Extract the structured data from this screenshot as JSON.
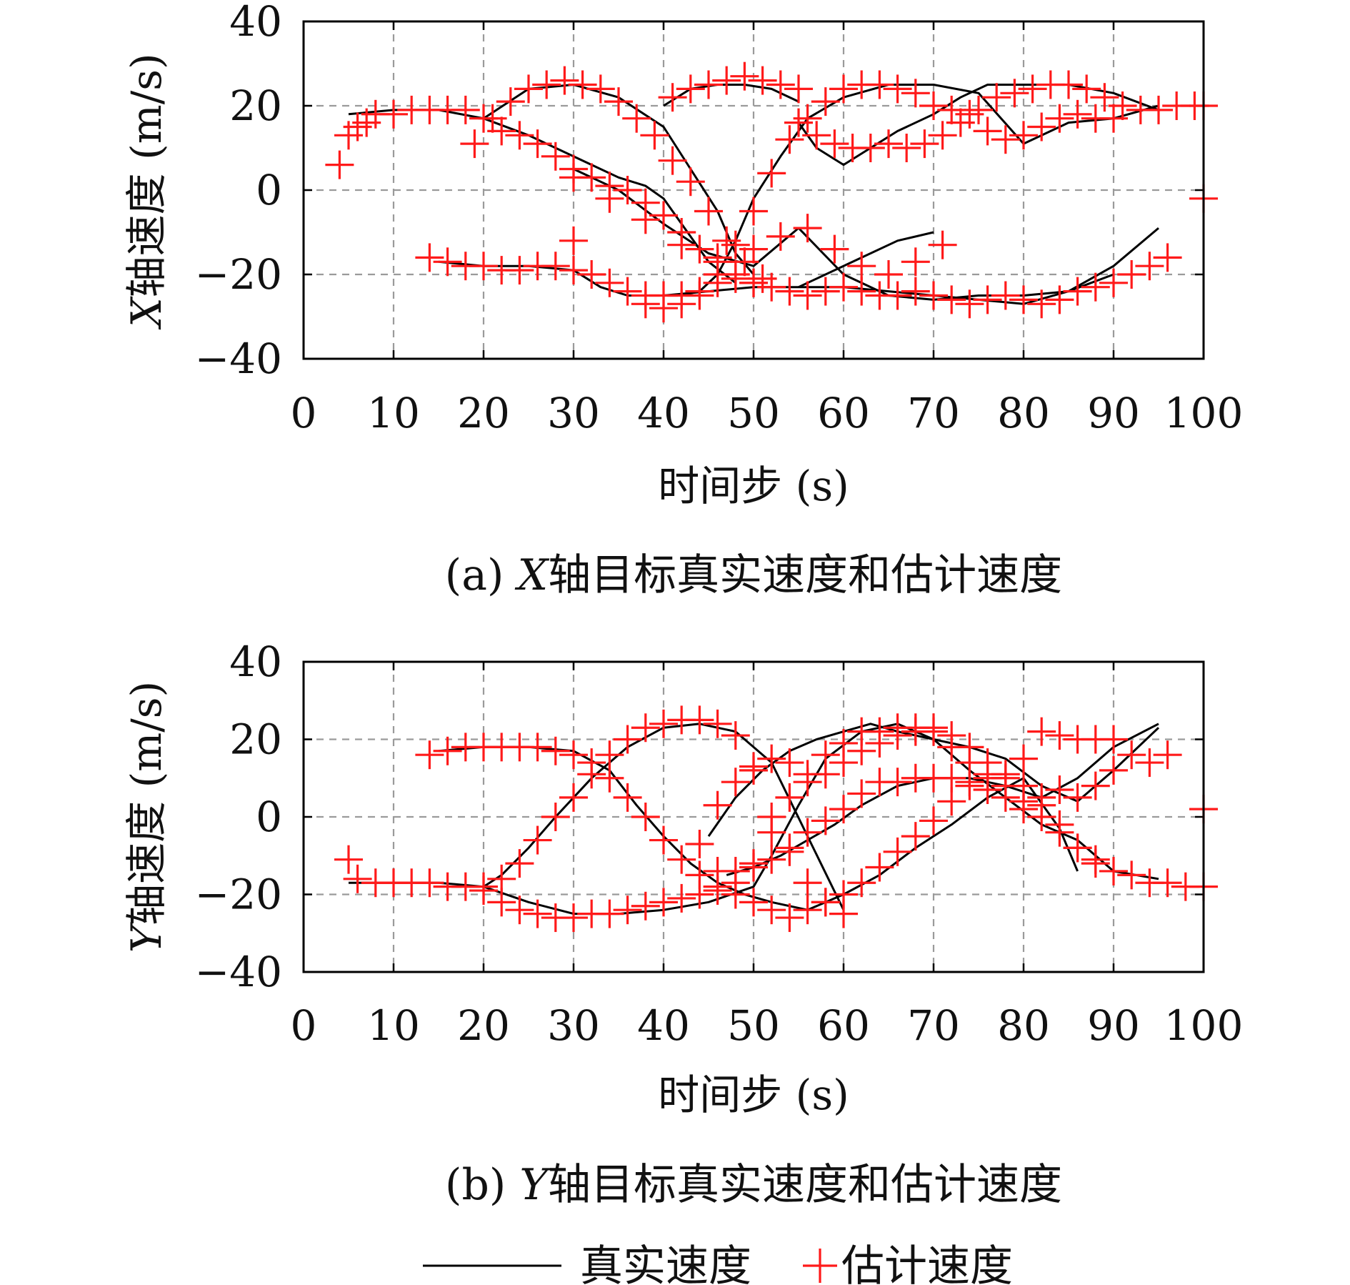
{
  "colors": {
    "true": "#000000",
    "estimate": "#ff1a1a",
    "grid": "#9a9a9a"
  },
  "legend": {
    "true_label": "真实速度",
    "estimate_label": "估计速度",
    "placement": "bottom-center"
  },
  "chart_data": [
    {
      "type": "line",
      "caption_prefix": "(a) ",
      "caption_axis": "X",
      "caption_rest": "轴目标真实速度和估计速度",
      "xlabel": "时间步 (s)",
      "ylabel_axis": "X",
      "ylabel_rest": "轴速度 (m/s)",
      "xlim": [
        0,
        100
      ],
      "ylim": [
        -40,
        40
      ],
      "grid": true,
      "xticks": [
        "0",
        "10",
        "20",
        "30",
        "40",
        "50",
        "60",
        "70",
        "80",
        "90",
        "100"
      ],
      "yticks": [
        "−40",
        "−20",
        "0",
        "20",
        "40"
      ],
      "true_series": [
        {
          "x": [
            5,
            10,
            15,
            20,
            25,
            28,
            32,
            35,
            38,
            40,
            42,
            45,
            48
          ],
          "y": [
            18,
            19,
            19,
            17,
            13,
            10,
            6,
            3,
            1,
            -2,
            -8,
            -17,
            -22
          ]
        },
        {
          "x": [
            15,
            20,
            25,
            30,
            33,
            36,
            40,
            45,
            50,
            55,
            60,
            65,
            70,
            75,
            80,
            85,
            90,
            95
          ],
          "y": [
            -17,
            -18,
            -18,
            -19,
            -23,
            -25,
            -25,
            -24,
            -23,
            -23,
            -23,
            -24,
            -25,
            -26,
            -27,
            -24,
            -18,
            -9
          ]
        },
        {
          "x": [
            20,
            25,
            30,
            35,
            40,
            43,
            46,
            48,
            50
          ],
          "y": [
            17,
            24,
            25,
            22,
            15,
            5,
            -5,
            -15,
            -20
          ]
        },
        {
          "x": [
            40,
            43,
            46,
            49,
            52,
            55
          ],
          "y": [
            20,
            24,
            25,
            25,
            24,
            21
          ]
        },
        {
          "x": [
            55,
            57,
            60,
            63,
            66,
            70,
            73,
            76,
            80,
            85,
            90,
            95
          ],
          "y": [
            16,
            10,
            6,
            10,
            14,
            18,
            22,
            25,
            25,
            25,
            23,
            19
          ]
        },
        {
          "x": [
            40,
            42,
            44,
            46,
            48,
            50,
            53,
            56,
            60,
            65,
            70,
            75,
            80,
            85,
            90,
            95
          ],
          "y": [
            -25,
            -25,
            -24,
            -20,
            -12,
            -2,
            8,
            17,
            22,
            25,
            25,
            23,
            11,
            16,
            17,
            20
          ]
        },
        {
          "x": [
            30,
            35,
            40,
            45,
            50,
            55,
            60,
            65,
            70,
            75,
            80,
            85,
            90
          ],
          "y": [
            5,
            0,
            -8,
            -15,
            -18,
            -9,
            -20,
            -25,
            -26,
            -25,
            -25,
            -24,
            -20
          ]
        },
        {
          "x": [
            55,
            58,
            62,
            66,
            70
          ],
          "y": [
            -23,
            -20,
            -16,
            -12,
            -10
          ]
        }
      ],
      "estimate_series": [
        {
          "x": [
            4,
            5,
            6,
            7,
            8,
            10,
            12,
            14,
            16,
            18,
            20,
            22,
            24,
            26,
            28,
            30,
            32,
            34,
            36,
            38,
            40,
            42,
            44,
            46,
            48,
            50
          ],
          "y": [
            6,
            13,
            15,
            16,
            18,
            18,
            19,
            19,
            19,
            19,
            17,
            14,
            13,
            11,
            8,
            5,
            3,
            1,
            0,
            -3,
            -6,
            -10,
            -14,
            -17,
            -20,
            -22
          ]
        },
        {
          "x": [
            14,
            16,
            18,
            20,
            22,
            24,
            26,
            28,
            30,
            32,
            34,
            36,
            38,
            40,
            42,
            44,
            46,
            48,
            50,
            52,
            54,
            56,
            58,
            60,
            62,
            64,
            66,
            68,
            70,
            72,
            74,
            76,
            78,
            80,
            82,
            84,
            86,
            88,
            90,
            92,
            94,
            96
          ],
          "y": [
            -16,
            -17,
            -18,
            -18,
            -19,
            -19,
            -18,
            -18,
            -19,
            -20,
            -22,
            -24,
            -25,
            -25,
            -25,
            -24,
            -22,
            -21,
            -22,
            -23,
            -24,
            -25,
            -24,
            -23,
            -24,
            -25,
            -25,
            -24,
            -25,
            -26,
            -27,
            -26,
            -25,
            -26,
            -27,
            -26,
            -24,
            -23,
            -22,
            -20,
            -18,
            -16
          ]
        },
        {
          "x": [
            19,
            21,
            23,
            25,
            27,
            29,
            31,
            33,
            35,
            37,
            39,
            41,
            43,
            45,
            47,
            49,
            51
          ],
          "y": [
            11,
            17,
            21,
            24,
            25,
            26,
            25,
            24,
            21,
            17,
            13,
            7,
            2,
            -5,
            -12,
            -17,
            -21
          ]
        },
        {
          "x": [
            41,
            43,
            45,
            47,
            49,
            51,
            53,
            55
          ],
          "y": [
            22,
            24,
            25,
            26,
            27,
            26,
            25,
            24
          ]
        },
        {
          "x": [
            55,
            57,
            59,
            61,
            63,
            65,
            67,
            69,
            71,
            73,
            75,
            77,
            79,
            81,
            83,
            85,
            87,
            89,
            91,
            93,
            95,
            97,
            99
          ],
          "y": [
            16,
            13,
            11,
            10,
            10,
            11,
            10,
            11,
            13,
            16,
            19,
            22,
            23,
            24,
            25,
            25,
            24,
            22,
            20,
            19,
            19,
            20,
            20
          ]
        },
        {
          "x": [
            38,
            40,
            42,
            44,
            46,
            48,
            50,
            52,
            54,
            56,
            58,
            60,
            62,
            64,
            66,
            68,
            70,
            72,
            74,
            76,
            78,
            80,
            82,
            84,
            86,
            88,
            90
          ],
          "y": [
            -27,
            -28,
            -27,
            -25,
            -20,
            -13,
            -5,
            4,
            12,
            17,
            21,
            24,
            25,
            25,
            24,
            23,
            20,
            19,
            18,
            14,
            12,
            13,
            15,
            17,
            18,
            17,
            17
          ]
        },
        {
          "x": [
            30,
            34,
            38,
            42,
            46,
            50,
            53,
            56,
            59,
            62,
            65,
            68,
            71
          ],
          "y": [
            3,
            -2,
            -7,
            -13,
            -16,
            -14,
            -11,
            -9,
            -14,
            -18,
            -20,
            -17,
            -13
          ]
        },
        {
          "x": [
            30,
            100,
            100
          ],
          "y": [
            -12,
            -2,
            20
          ]
        }
      ]
    },
    {
      "type": "line",
      "caption_prefix": "(b) ",
      "caption_axis": "Y",
      "caption_rest": "轴目标真实速度和估计速度",
      "xlabel": "时间步 (s)",
      "ylabel_axis": "Y",
      "ylabel_rest": "轴速度 (m/s)",
      "xlim": [
        0,
        100
      ],
      "ylim": [
        -40,
        40
      ],
      "grid": true,
      "xticks": [
        "0",
        "10",
        "20",
        "30",
        "40",
        "50",
        "60",
        "70",
        "80",
        "90",
        "100"
      ],
      "yticks": [
        "−40",
        "−20",
        "0",
        "20",
        "40"
      ],
      "true_series": [
        {
          "x": [
            5,
            10,
            15,
            20,
            22,
            25,
            28,
            32,
            36,
            40,
            44,
            48,
            52,
            56,
            60
          ],
          "y": [
            -17,
            -17,
            -17,
            -18,
            -15,
            -8,
            0,
            10,
            18,
            23,
            24,
            22,
            14,
            -5,
            -24
          ]
        },
        {
          "x": [
            15,
            20,
            25,
            30,
            34,
            37,
            40,
            43,
            46,
            49,
            52,
            56,
            60,
            64,
            68,
            72,
            76,
            80,
            84,
            86
          ],
          "y": [
            17,
            18,
            18,
            17,
            12,
            3,
            -5,
            -12,
            -17,
            -20,
            -22,
            -24,
            -20,
            -15,
            -8,
            -2,
            5,
            10,
            -3,
            -14
          ]
        },
        {
          "x": [
            20,
            25,
            30,
            35,
            40,
            45,
            50,
            52,
            55,
            58,
            62,
            66,
            70,
            74,
            78,
            82,
            86,
            90,
            95
          ],
          "y": [
            -18,
            -22,
            -25,
            -25,
            -24,
            -22,
            -18,
            -10,
            3,
            15,
            22,
            24,
            20,
            12,
            5,
            -2,
            -6,
            -14,
            -16
          ]
        },
        {
          "x": [
            45,
            48,
            51,
            54,
            57,
            60,
            63,
            66,
            70,
            74,
            78,
            82,
            86,
            90,
            95
          ],
          "y": [
            -5,
            5,
            12,
            17,
            20,
            22,
            24,
            22,
            20,
            18,
            15,
            8,
            4,
            12,
            23
          ]
        },
        {
          "x": [
            47,
            50,
            53,
            56,
            59,
            62,
            66,
            70,
            74,
            78,
            82,
            86,
            90,
            95
          ],
          "y": [
            -15,
            -13,
            -10,
            -6,
            -2,
            3,
            8,
            10,
            10,
            8,
            5,
            10,
            18,
            24
          ]
        }
      ],
      "estimate_series": [
        {
          "x": [
            5,
            6,
            8,
            10,
            12,
            14,
            16,
            18,
            20,
            22,
            24,
            26,
            28,
            30,
            32,
            34,
            36,
            38,
            40,
            42,
            44,
            46,
            48,
            50,
            52,
            54,
            56,
            58,
            60
          ],
          "y": [
            -11,
            -16,
            -17,
            -17,
            -17,
            -17,
            -18,
            -18,
            -19,
            -16,
            -12,
            -6,
            0,
            5,
            11,
            16,
            20,
            23,
            24,
            25,
            25,
            24,
            21,
            12,
            0,
            -9,
            -17,
            -22,
            -25
          ]
        },
        {
          "x": [
            14,
            16,
            18,
            20,
            22,
            24,
            26,
            28,
            30,
            32,
            34,
            36,
            38,
            40,
            42,
            44,
            46,
            48,
            50,
            52,
            54,
            56,
            58,
            60,
            62,
            64,
            66,
            68,
            70,
            72,
            74,
            76,
            78,
            80,
            82,
            84,
            86,
            88
          ],
          "y": [
            16,
            17,
            18,
            18,
            18,
            18,
            18,
            17,
            16,
            14,
            10,
            5,
            0,
            -6,
            -11,
            -15,
            -18,
            -20,
            -22,
            -24,
            -26,
            -24,
            -22,
            -20,
            -17,
            -13,
            -9,
            -5,
            -1,
            4,
            8,
            10,
            10,
            8,
            3,
            -2,
            -8,
            -12
          ]
        },
        {
          "x": [
            20,
            22,
            24,
            26,
            28,
            30,
            32,
            34,
            36,
            38,
            40,
            42,
            44,
            46,
            48,
            50,
            52,
            54,
            56,
            58,
            60,
            62,
            64,
            66,
            68,
            70,
            72,
            74,
            76,
            78,
            80,
            82,
            84,
            86,
            88,
            90,
            92,
            94,
            96,
            98,
            100
          ],
          "y": [
            -18,
            -22,
            -24,
            -25,
            -26,
            -26,
            -25,
            -25,
            -24,
            -23,
            -22,
            -21,
            -20,
            -19,
            -17,
            -12,
            -4,
            5,
            11,
            16,
            19,
            22,
            22,
            23,
            23,
            22,
            18,
            14,
            11,
            8,
            4,
            0,
            -4,
            -8,
            -11,
            -14,
            -15,
            -17,
            -17,
            -18,
            -18
          ]
        },
        {
          "x": [
            44,
            46,
            48,
            50,
            52,
            54,
            56,
            58,
            60,
            62,
            64,
            66,
            68,
            70,
            72,
            74,
            76,
            78,
            80,
            82,
            84,
            86,
            88,
            90,
            92,
            94,
            96
          ],
          "y": [
            -7,
            3,
            9,
            13,
            15,
            14,
            9,
            11,
            14,
            17,
            19,
            21,
            22,
            23,
            21,
            18,
            14,
            11,
            15,
            22,
            21,
            20,
            20,
            20,
            16,
            14,
            16
          ]
        },
        {
          "x": [
            46,
            48,
            50,
            52,
            54,
            56,
            58,
            60,
            62,
            64,
            66,
            68,
            70,
            72,
            74,
            76,
            78,
            80,
            82,
            84,
            86,
            88,
            90,
            100
          ],
          "y": [
            -14,
            -14,
            -13,
            -11,
            -8,
            -4,
            -1,
            2,
            6,
            9,
            9,
            10,
            10,
            10,
            9,
            7,
            5,
            2,
            5,
            7,
            5,
            8,
            12,
            2
          ]
        }
      ]
    }
  ]
}
